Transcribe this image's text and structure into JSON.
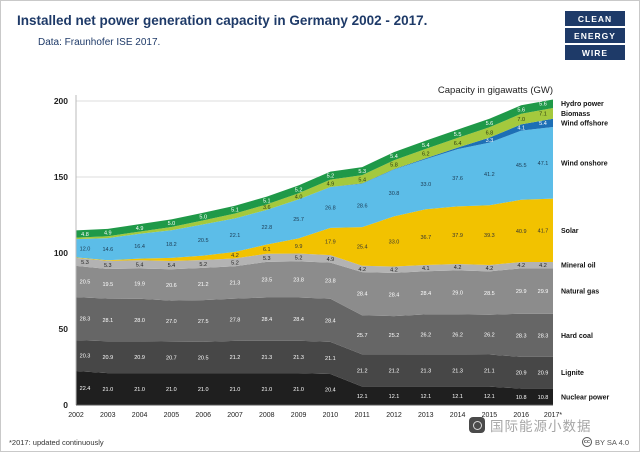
{
  "header": {
    "title": "Installed net power generation capacity in Germany 2002 - 2017.",
    "subtitle": "Data: Fraunhofer ISE 2017.",
    "logo_lines": [
      "CLEAN",
      "ENERGY",
      "WIRE"
    ],
    "brand_color": "#1e3a68"
  },
  "chart_data": {
    "type": "area",
    "stacked": true,
    "title": "Capacity in gigawatts (GW)",
    "x": [
      "2002",
      "2003",
      "2004",
      "2005",
      "2006",
      "2007",
      "2008",
      "2009",
      "2010",
      "2011",
      "2012",
      "2013",
      "2014",
      "2015",
      "2016",
      "2017*"
    ],
    "ylim": [
      0,
      200
    ],
    "yticks": [
      0,
      50,
      100,
      150,
      200
    ],
    "grid": true,
    "legend_position": "right",
    "series": [
      {
        "name": "Nuclear power",
        "color": "#1f1f1f",
        "label_color": "#ffffff",
        "values": [
          22.4,
          21.0,
          21.0,
          21.0,
          21.0,
          21.0,
          21.0,
          21.0,
          20.4,
          12.1,
          12.1,
          12.1,
          12.1,
          12.1,
          10.8,
          10.8
        ]
      },
      {
        "name": "Lignite",
        "color": "#474747",
        "label_color": "#ffffff",
        "values": [
          20.3,
          20.9,
          20.9,
          20.7,
          20.5,
          21.2,
          21.3,
          21.3,
          21.1,
          21.2,
          21.2,
          21.3,
          21.3,
          21.1,
          20.9,
          20.9
        ]
      },
      {
        "name": "Hard coal",
        "color": "#666666",
        "label_color": "#ffffff",
        "values": [
          28.3,
          28.1,
          28.0,
          27.0,
          27.5,
          27.8,
          28.4,
          28.4,
          28.4,
          25.7,
          25.2,
          26.2,
          26.2,
          26.2,
          28.3,
          28.3
        ]
      },
      {
        "name": "Natural gas",
        "color": "#8c8c8c",
        "label_color": "#ffffff",
        "values": [
          20.5,
          19.5,
          19.9,
          20.6,
          21.2,
          21.3,
          23.5,
          23.8,
          23.8,
          28.4,
          28.4,
          28.4,
          29.0,
          28.5,
          29.9,
          29.9
        ]
      },
      {
        "name": "Mineral oil",
        "color": "#b3b3b3",
        "label_color": "#222222",
        "values": [
          5.3,
          5.3,
          5.4,
          5.4,
          5.2,
          5.2,
          5.3,
          5.2,
          4.9,
          4.2,
          4.2,
          4.1,
          4.2,
          4.2,
          4.2,
          4.2
        ]
      },
      {
        "name": "Solar",
        "color": "#f2c200",
        "label_color": "#333333",
        "values": [
          0.3,
          0.4,
          1.1,
          2.1,
          2.9,
          4.2,
          6.1,
          9.9,
          17.9,
          25.4,
          33.0,
          36.7,
          37.9,
          39.3,
          40.9,
          41.7
        ]
      },
      {
        "name": "Wind onshore",
        "color": "#5cbde8",
        "label_color": "#1c3a52",
        "values": [
          12.0,
          14.6,
          16.4,
          18.2,
          20.5,
          22.1,
          22.8,
          25.7,
          26.8,
          28.6,
          30.8,
          33.0,
          37.6,
          41.2,
          45.5,
          47.1
        ]
      },
      {
        "name": "Wind offshore",
        "color": "#1d6fb5",
        "label_color": "#ffffff",
        "values": [
          0.0,
          0.0,
          0.0,
          0.0,
          0.0,
          0.0,
          0.0,
          0.0,
          0.1,
          0.2,
          0.3,
          0.5,
          1.0,
          3.3,
          4.1,
          5.4
        ]
      },
      {
        "name": "Biomass",
        "color": "#a4c93d",
        "label_color": "#2d3a10",
        "values": [
          1.0,
          1.2,
          1.4,
          2.1,
          2.7,
          3.2,
          3.6,
          4.0,
          4.9,
          5.4,
          5.8,
          6.2,
          6.4,
          6.8,
          7.0,
          7.1
        ]
      },
      {
        "name": "Hydro power",
        "color": "#1f9948",
        "label_color": "#ffffff",
        "values": [
          4.8,
          4.9,
          4.9,
          5.0,
          5.0,
          5.1,
          5.1,
          5.2,
          5.2,
          5.3,
          5.4,
          5.4,
          5.5,
          5.6,
          5.6,
          5.6
        ]
      }
    ]
  },
  "footer": {
    "footnote": "*2017: updated continuously",
    "cc_symbol": "cc",
    "license": "BY SA 4.0",
    "watermark": "国际能源小数据"
  }
}
